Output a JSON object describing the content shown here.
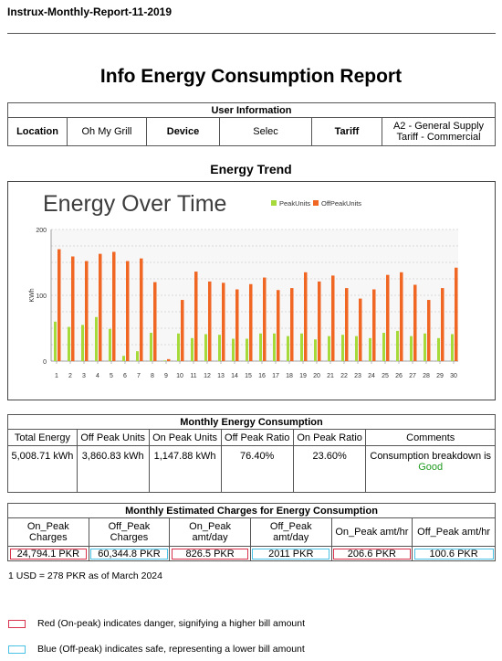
{
  "document": {
    "header": "Instrux-Monthly-Report-11-2019",
    "title": "Info Energy Consumption Report"
  },
  "user_info": {
    "heading": "User Information",
    "location_label": "Location",
    "location_value": "Oh My Grill",
    "device_label": "Device",
    "device_value": "Selec",
    "tariff_label": "Tariff",
    "tariff_value": "A2 - General Supply Tariff - Commercial"
  },
  "trend": {
    "section_title": "Energy Trend"
  },
  "chart_data": {
    "type": "bar",
    "title": "Energy Over Time",
    "xlabel": "",
    "ylabel": "KWh",
    "ylim": [
      0,
      200
    ],
    "yticks": [
      0,
      100,
      200
    ],
    "grid": true,
    "legend_placement": "top",
    "categories": [
      "1",
      "2",
      "3",
      "4",
      "5",
      "6",
      "7",
      "8",
      "9",
      "10",
      "11",
      "12",
      "13",
      "14",
      "15",
      "16",
      "17",
      "18",
      "19",
      "20",
      "21",
      "22",
      "23",
      "24",
      "25",
      "26",
      "27",
      "28",
      "29",
      "30"
    ],
    "series": [
      {
        "name": "PeakUnits",
        "color": "#a6d93a",
        "values": [
          60,
          52,
          55,
          67,
          49,
          8,
          15,
          43,
          1,
          42,
          35,
          41,
          40,
          34,
          34,
          42,
          42,
          38,
          42,
          33,
          38,
          40,
          38,
          35,
          43,
          46,
          38,
          42,
          35,
          41
        ]
      },
      {
        "name": "OffPeakUnits",
        "color": "#f06623",
        "values": [
          170,
          159,
          152,
          163,
          166,
          152,
          156,
          120,
          3,
          93,
          136,
          121,
          119,
          109,
          117,
          127,
          108,
          111,
          135,
          121,
          130,
          111,
          95,
          109,
          131,
          135,
          116,
          93,
          111,
          142
        ]
      }
    ]
  },
  "monthly": {
    "heading": "Monthly Energy Consumption",
    "headers": [
      "Total Energy",
      "Off Peak Units",
      "On Peak Units",
      "Off Peak Ratio",
      "On Peak Ratio",
      "Comments"
    ],
    "values": [
      "5,008.71 kWh",
      "3,860.83 kWh",
      "1,147.88 kWh",
      "76.40%",
      "23.60%"
    ],
    "comment": "Consumption breakdown is",
    "comment_status": "Good",
    "status_color": "#1f9a1f"
  },
  "charges": {
    "heading": "Monthly Estimated Charges for Energy Consumption",
    "headers": [
      "On_Peak Charges",
      "Off_Peak Charges",
      "On_Peak amt/day",
      "Off_Peak amt/day",
      "On_Peak amt/hr",
      "Off_Peak amt/hr"
    ],
    "values": [
      "24,794.1 PKR",
      "60,344.8 PKR",
      "826.5 PKR",
      "2011 PKR",
      "206.6 PKR",
      "100.6 PKR"
    ],
    "rate_note": "1 USD = 278 PKR as of March 2024"
  },
  "legend": {
    "red_text": "Red (On-peak) indicates danger, signifying a higher bill amount",
    "blue_text": "Blue (Off-peak) indicates safe, representing a lower bill amount",
    "red_color": "#d9324d",
    "blue_color": "#49c2e6"
  }
}
